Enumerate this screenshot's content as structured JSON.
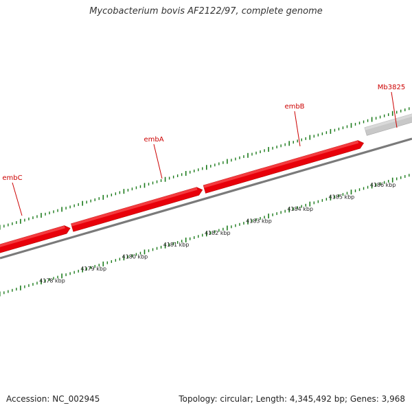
{
  "title": "Mycobacterium bovis AF2122/97, complete genome",
  "footer": {
    "accession": "Accession: NC_002945",
    "summary": "Topology: circular; Length: 4,345,492 bp; Genes: 3,968"
  },
  "colors": {
    "gene_fill": "#e8000a",
    "gene_highlight": "#ff6b6b",
    "gene_other": "#c8c8c8",
    "backbone": "#7a7a7a",
    "ticks": "#1a7a1a",
    "label": "#cc0000"
  },
  "genes": [
    {
      "name": "embC",
      "start_kbp": 4176.9,
      "end_kbp": 4178.7,
      "strand": "+",
      "labeled": true,
      "label_kbp": 4177.9
    },
    {
      "name": "embA",
      "start_kbp": 4178.75,
      "end_kbp": 4181.9,
      "strand": "+",
      "labeled": true,
      "label_kbp": 4180.3
    },
    {
      "name": "embB",
      "start_kbp": 4181.95,
      "end_kbp": 4185.8,
      "strand": "+",
      "labeled": true,
      "label_kbp": 4183.9
    },
    {
      "name": "",
      "start_kbp": 4185.85,
      "end_kbp": 4187.2,
      "strand": "+",
      "labeled": false
    },
    {
      "name": "Mb3825",
      "start_kbp": 4185.85,
      "end_kbp": 4187.5,
      "strand": "+",
      "labeled": true,
      "label_kbp": 4186.2,
      "other": true
    }
  ],
  "axis": {
    "labels": [
      "4178 kbp",
      "4179 kbp",
      "4180 kbp",
      "4181 kbp",
      "4182 kbp",
      "4183 kbp",
      "4184 kbp",
      "4185 kbp",
      "4186 kbp"
    ],
    "values": [
      4178,
      4179,
      4180,
      4181,
      4182,
      4183,
      4184,
      4185,
      4186
    ]
  }
}
